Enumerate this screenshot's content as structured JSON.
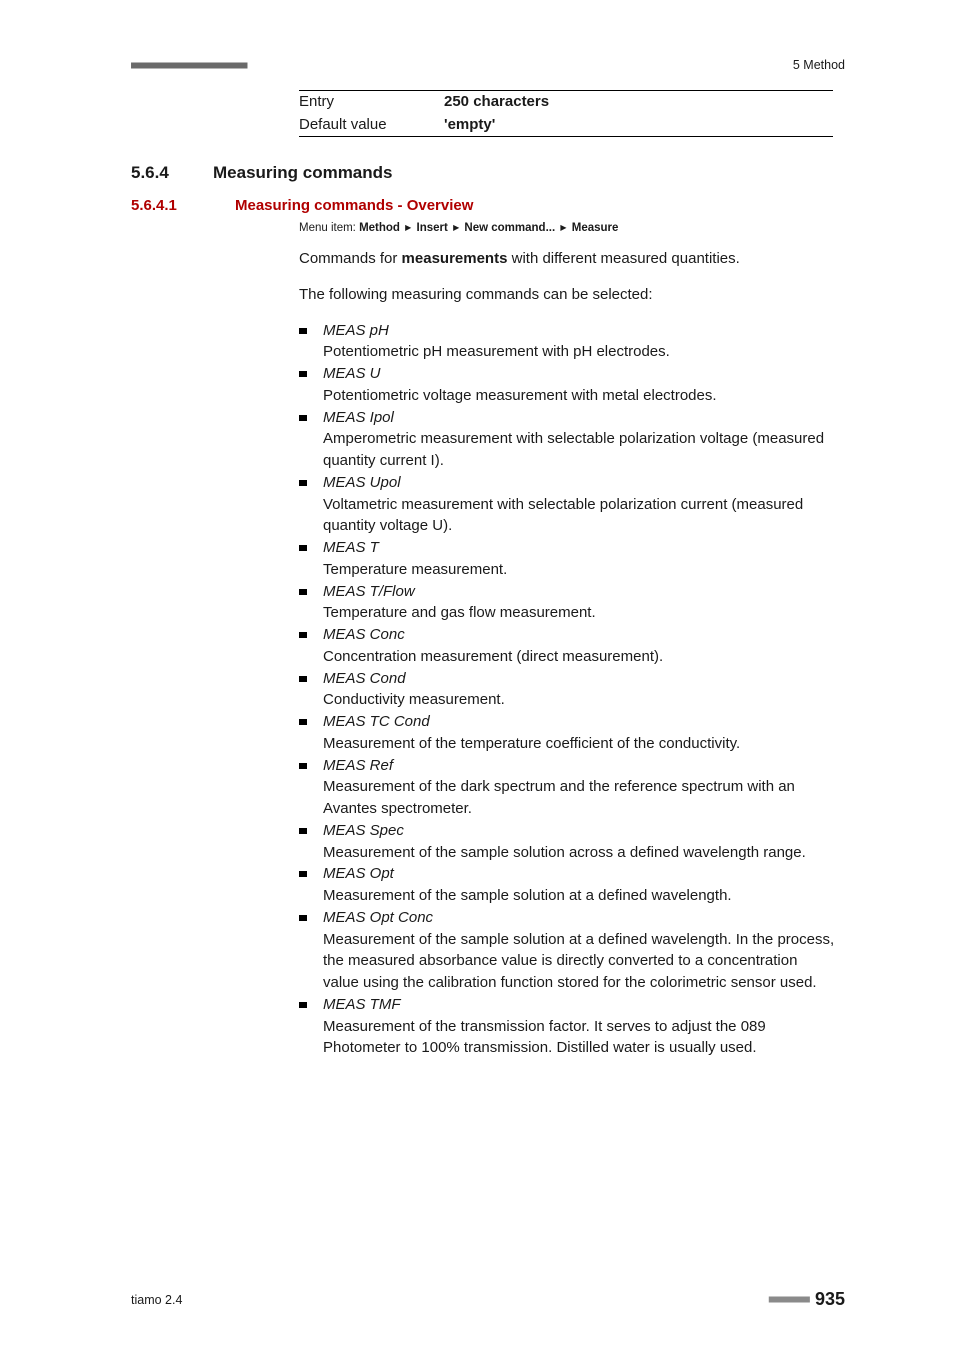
{
  "header": {
    "dots": "■■■■■■■■■■■■■■■■■■■■■■■",
    "right": "5 Method"
  },
  "def_rows": [
    {
      "key": "Entry",
      "val": "250 characters",
      "bold": true
    },
    {
      "key": "Default value",
      "val": "'empty'",
      "bold": true
    }
  ],
  "h2": {
    "num": "5.6.4",
    "title": "Measuring commands"
  },
  "h3": {
    "num": "5.6.4.1",
    "title": "Measuring commands - Overview"
  },
  "menu_path": {
    "label": "Menu item: ",
    "items": [
      "Method",
      "Insert",
      "New command...",
      "Measure"
    ]
  },
  "intro1_a": "Commands for ",
  "intro1_b": "measurements",
  "intro1_c": " with different measured quantities.",
  "intro2": "The following measuring commands can be selected:",
  "commands": [
    {
      "name": "MEAS pH",
      "desc": "Potentiometric pH measurement with pH electrodes."
    },
    {
      "name": "MEAS U",
      "desc": "Potentiometric voltage measurement with metal electrodes."
    },
    {
      "name": "MEAS Ipol",
      "desc": "Amperometric measurement with selectable polarization voltage (measured quantity current I)."
    },
    {
      "name": "MEAS Upol",
      "desc": "Voltametric measurement with selectable polarization current (measured quantity voltage U)."
    },
    {
      "name": "MEAS T",
      "desc": "Temperature measurement."
    },
    {
      "name": "MEAS T/Flow",
      "desc": "Temperature and gas flow measurement."
    },
    {
      "name": "MEAS Conc",
      "desc": "Concentration measurement (direct measurement)."
    },
    {
      "name": "MEAS Cond",
      "desc": "Conductivity measurement."
    },
    {
      "name": "MEAS TC Cond",
      "desc": "Measurement of the temperature coefficient of the conductivity."
    },
    {
      "name": "MEAS Ref",
      "desc": "Measurement of the dark spectrum and the reference spectrum with an Avantes spectrometer."
    },
    {
      "name": "MEAS Spec",
      "desc": "Measurement of the sample solution across a defined wavelength range."
    },
    {
      "name": "MEAS Opt",
      "desc": "Measurement of the sample solution at a defined wavelength."
    },
    {
      "name": "MEAS Opt Conc",
      "desc": "Measurement of the sample solution at a defined wavelength. In the process, the measured absorbance value is directly converted to a concentration value using the calibration function stored for the colorimetric sensor used."
    },
    {
      "name": "MEAS TMF",
      "desc": "Measurement of the transmission factor. It serves to adjust the 089 Photometer to 100% transmission. Distilled water is usually used."
    }
  ],
  "footer": {
    "left": "tiamo 2.4",
    "dots": "■■■■■■■■",
    "page": "935"
  }
}
